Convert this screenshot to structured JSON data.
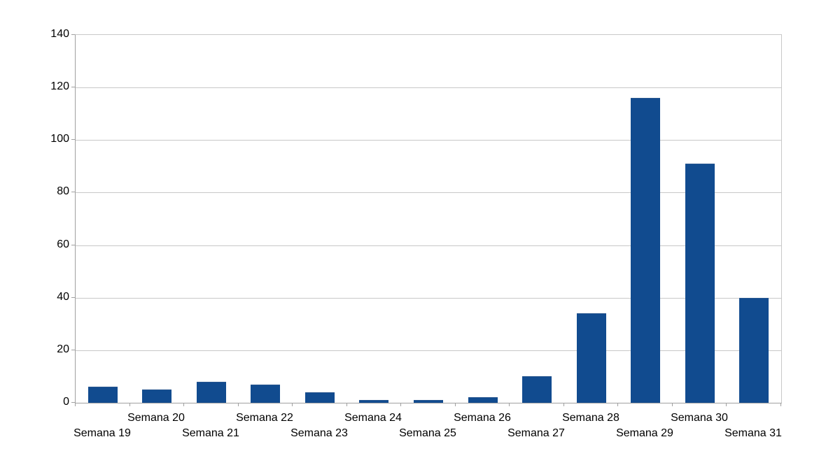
{
  "chart_data": {
    "type": "bar",
    "title": "",
    "xlabel": "",
    "ylabel": "",
    "categories": [
      "Semana 19",
      "Semana 20",
      "Semana 21",
      "Semana 22",
      "Semana 23",
      "Semana 24",
      "Semana 25",
      "Semana 26",
      "Semana 27",
      "Semana 28",
      "Semana 29",
      "Semana 30",
      "Semana 31"
    ],
    "values": [
      6,
      5,
      8,
      7,
      4,
      1,
      1,
      2,
      10,
      34,
      116,
      91,
      40
    ],
    "ylim": [
      0,
      140
    ],
    "yticks": [
      0,
      20,
      40,
      60,
      80,
      100,
      120,
      140
    ],
    "grid": true,
    "legend": false,
    "x_label_layout": "staggered-two-rows-even-weeks-upper"
  },
  "colors": {
    "background": "#ffffff",
    "bar_fill": "#114b8f",
    "bar_edge": "#29578f",
    "gridline": "#c8c8c8",
    "axis": "#a0a0a0",
    "text": "#000000"
  }
}
